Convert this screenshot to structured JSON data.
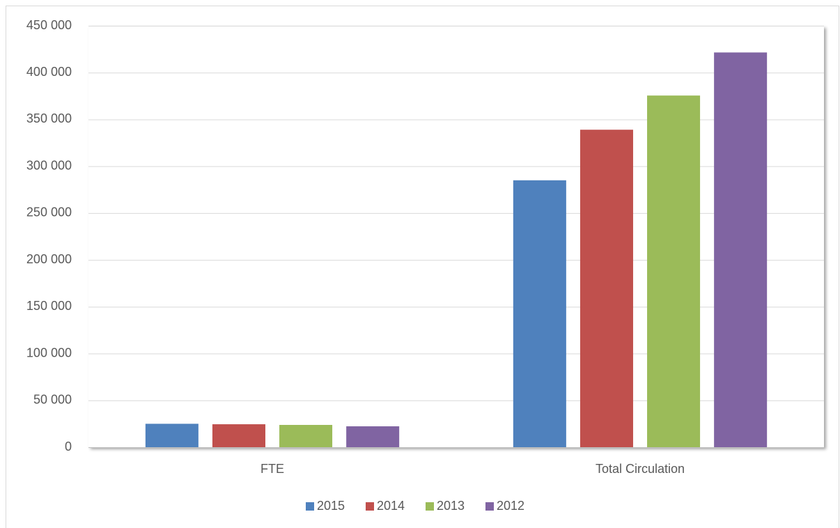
{
  "chart_data": {
    "type": "bar",
    "categories": [
      "FTE",
      "Total Circulation"
    ],
    "series": [
      {
        "name": "2015",
        "color": "#4f81bd",
        "values": [
          25000,
          285000
        ]
      },
      {
        "name": "2014",
        "color": "#c0504d",
        "values": [
          24500,
          339000
        ]
      },
      {
        "name": "2013",
        "color": "#9bbb59",
        "values": [
          23800,
          375500
        ]
      },
      {
        "name": "2012",
        "color": "#8064a2",
        "values": [
          22300,
          421500
        ]
      }
    ],
    "ylim": [
      0,
      450000
    ],
    "yticks": [
      0,
      {
        "value": 50000,
        "label": "50 000"
      },
      {
        "value": 100000,
        "label": "100 000"
      },
      {
        "value": 150000,
        "label": "150 000"
      },
      {
        "value": 200000,
        "label": "200 000"
      },
      {
        "value": 250000,
        "label": "250 000"
      },
      {
        "value": 300000,
        "label": "300 000"
      },
      {
        "value": 350000,
        "label": "350 000"
      },
      {
        "value": 400000,
        "label": "400 000"
      },
      {
        "value": 450000,
        "label": "450 000"
      }
    ],
    "grid": true,
    "legend": "bottom"
  }
}
